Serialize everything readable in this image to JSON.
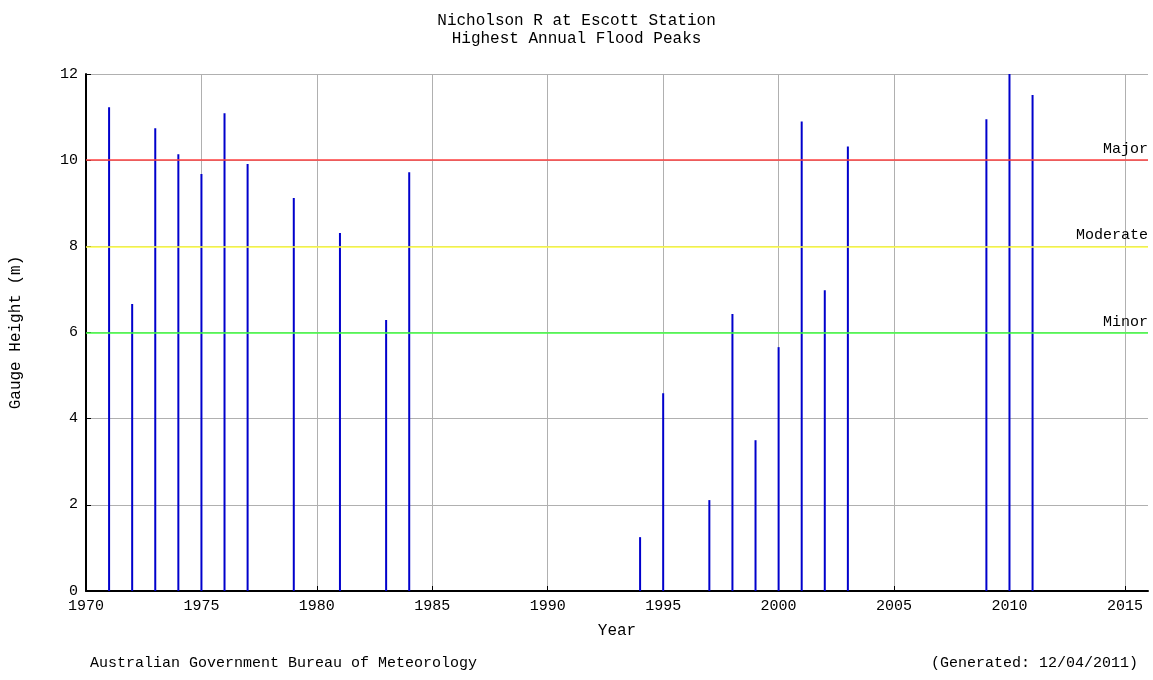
{
  "chart_data": {
    "type": "bar",
    "title": "Nicholson R at Escott Station",
    "subtitle": "Highest Annual Flood Peaks",
    "xlabel": "Year",
    "ylabel": "Gauge Height (m)",
    "x": [
      1971,
      1972,
      1973,
      1974,
      1975,
      1976,
      1977,
      1979,
      1981,
      1983,
      1984,
      1994,
      1995,
      1997,
      1998,
      1999,
      2000,
      2001,
      2002,
      2003,
      2009,
      2010,
      2011
    ],
    "values": [
      11.23,
      6.66,
      10.74,
      10.14,
      9.68,
      11.09,
      9.91,
      9.12,
      8.31,
      6.29,
      9.72,
      1.25,
      4.59,
      2.11,
      6.43,
      3.5,
      5.66,
      10.9,
      6.98,
      10.32,
      10.95,
      12.0,
      11.51
    ],
    "color": "#0000cc",
    "xlim": [
      1970,
      2016
    ],
    "xticks": [
      1970,
      1975,
      1980,
      1985,
      1990,
      1995,
      2000,
      2005,
      2010,
      2015
    ],
    "ylim": [
      0,
      12
    ],
    "yticks": [
      0,
      2,
      4,
      6,
      8,
      10,
      12
    ],
    "grid": true,
    "ref_lines": [
      {
        "axis": "y",
        "value": 10,
        "label": "Major",
        "color": "#ff4040"
      },
      {
        "axis": "y",
        "value": 8,
        "label": "Moderate",
        "color": "#ffff40"
      },
      {
        "axis": "y",
        "value": 6,
        "label": "Minor",
        "color": "#40ff40"
      }
    ],
    "annotations": [
      "Australian Government Bureau of Meteorology",
      "(Generated: 12/04/2011)"
    ]
  }
}
